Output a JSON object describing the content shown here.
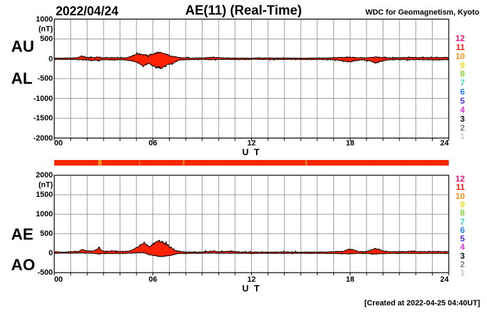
{
  "header": {
    "date": "2022/04/24",
    "title": "AE(11) (Real-Time)",
    "source": "WDC for Geomagnetism, Kyoto"
  },
  "footer": {
    "created": "[Created at 2022-04-25 04:40UT]"
  },
  "axis": {
    "xlabel": "U T",
    "xticks": [
      {
        "label": "00",
        "hour": 0
      },
      {
        "label": "06",
        "hour": 6
      },
      {
        "label": "12",
        "hour": 12
      },
      {
        "label": "18",
        "hour": 18
      },
      {
        "label": "24",
        "hour": 24
      }
    ]
  },
  "panels": {
    "top": {
      "label_upper": "AU",
      "label_lower": "AL",
      "unit": "(nT)",
      "yticks": [
        {
          "label": "1000",
          "value": 1000
        },
        {
          "label": "500",
          "value": 500
        },
        {
          "label": "0",
          "value": 0
        },
        {
          "label": "-500",
          "value": -500
        },
        {
          "label": "-1000",
          "value": -1000
        },
        {
          "label": "-1500",
          "value": -1500
        },
        {
          "label": "-2000",
          "value": -2000
        }
      ]
    },
    "bottom": {
      "label_upper": "AE",
      "label_lower": "AO",
      "unit": "(nT)",
      "yticks": [
        {
          "label": "2000",
          "value": 2000
        },
        {
          "label": "1500",
          "value": 1500
        },
        {
          "label": "1000",
          "value": 1000
        },
        {
          "label": "500",
          "value": 500
        },
        {
          "label": "0",
          "value": 0
        },
        {
          "label": "-500",
          "value": -500
        }
      ]
    }
  },
  "legend": {
    "stations": [
      {
        "id": "12",
        "color": "#f01078"
      },
      {
        "id": "11",
        "color": "#ff2010"
      },
      {
        "id": "10",
        "color": "#ff9010"
      },
      {
        "id": "9",
        "color": "#f0e020"
      },
      {
        "id": "8",
        "color": "#80d830"
      },
      {
        "id": "7",
        "color": "#30d8c0"
      },
      {
        "id": "6",
        "color": "#2080f0"
      },
      {
        "id": "5",
        "color": "#5030d8"
      },
      {
        "id": "4",
        "color": "#e830e8"
      },
      {
        "id": "3",
        "color": "#101010"
      },
      {
        "id": "2",
        "color": "#808080"
      },
      {
        "id": "1",
        "color": "#c8c8c8"
      }
    ]
  },
  "station_bar": {
    "base_color": "#ff2200",
    "texture_color": "#ef3000",
    "gap_color": "#ff9010",
    "gaps": [
      {
        "hour": 2.68,
        "width_hours": 0.18
      },
      {
        "hour": 5.15,
        "width_hours": 0.07
      },
      {
        "hour": 7.83,
        "width_hours": 0.07
      },
      {
        "hour": 15.3,
        "width_hours": 0.05
      }
    ]
  },
  "chart_data": [
    {
      "type": "area",
      "title": "AU (upper envelope) and AL (lower envelope), 1-min values",
      "xlim": [
        0,
        24
      ],
      "ylim": [
        -2000,
        1000
      ],
      "ygrid_step": 500,
      "xgrid_step_hours": 1,
      "ylabel": "nT",
      "xlabel": "U T",
      "fill_color": "#ff2200",
      "outline_color": "#000000",
      "series": [
        {
          "name": "AU",
          "points": [
            [
              0,
              18
            ],
            [
              0.4,
              14
            ],
            [
              0.8,
              18
            ],
            [
              1.2,
              22
            ],
            [
              1.45,
              30
            ],
            [
              1.66,
              68
            ],
            [
              1.85,
              40
            ],
            [
              2.1,
              28
            ],
            [
              2.4,
              32
            ],
            [
              2.68,
              45
            ],
            [
              2.9,
              28
            ],
            [
              3.2,
              24
            ],
            [
              3.5,
              30
            ],
            [
              3.8,
              22
            ],
            [
              4.1,
              20
            ],
            [
              4.4,
              28
            ],
            [
              4.7,
              70
            ],
            [
              4.95,
              110
            ],
            [
              5.2,
              125
            ],
            [
              5.45,
              100
            ],
            [
              5.7,
              85
            ],
            [
              5.95,
              115
            ],
            [
              6.2,
              145
            ],
            [
              6.45,
              150
            ],
            [
              6.7,
              125
            ],
            [
              6.95,
              95
            ],
            [
              7.2,
              60
            ],
            [
              7.5,
              35
            ],
            [
              7.8,
              25
            ],
            [
              8.5,
              20
            ],
            [
              9.3,
              28
            ],
            [
              9.7,
              40
            ],
            [
              10.2,
              22
            ],
            [
              11,
              16
            ],
            [
              12,
              16
            ],
            [
              13,
              20
            ],
            [
              14,
              15
            ],
            [
              15,
              16
            ],
            [
              16,
              20
            ],
            [
              17,
              24
            ],
            [
              17.7,
              38
            ],
            [
              18,
              42
            ],
            [
              18.4,
              28
            ],
            [
              19,
              22
            ],
            [
              19.35,
              35
            ],
            [
              19.65,
              45
            ],
            [
              19.95,
              30
            ],
            [
              20.5,
              24
            ],
            [
              21,
              28
            ],
            [
              21.6,
              34
            ],
            [
              22.2,
              28
            ],
            [
              23,
              32
            ],
            [
              23.6,
              28
            ],
            [
              24,
              32
            ]
          ]
        },
        {
          "name": "AL",
          "points": [
            [
              0,
              -14
            ],
            [
              0.5,
              -18
            ],
            [
              1,
              -15
            ],
            [
              1.4,
              -20
            ],
            [
              1.7,
              -28
            ],
            [
              2,
              -25
            ],
            [
              2.3,
              -52
            ],
            [
              2.55,
              -30
            ],
            [
              2.68,
              -55
            ],
            [
              2.85,
              -30
            ],
            [
              3.2,
              -22
            ],
            [
              3.5,
              -35
            ],
            [
              3.8,
              -24
            ],
            [
              4.1,
              -22
            ],
            [
              4.45,
              -35
            ],
            [
              4.75,
              -55
            ],
            [
              5,
              -85
            ],
            [
              5.2,
              -130
            ],
            [
              5.4,
              -195
            ],
            [
              5.55,
              -150
            ],
            [
              5.75,
              -115
            ],
            [
              5.95,
              -170
            ],
            [
              6.15,
              -225
            ],
            [
              6.35,
              -205
            ],
            [
              6.55,
              -245
            ],
            [
              6.75,
              -185
            ],
            [
              6.95,
              -130
            ],
            [
              7.15,
              -140
            ],
            [
              7.35,
              -80
            ],
            [
              7.6,
              -40
            ],
            [
              7.9,
              -25
            ],
            [
              8.5,
              -18
            ],
            [
              9.5,
              -22
            ],
            [
              10.5,
              -16
            ],
            [
              11.5,
              -18
            ],
            [
              12.5,
              -15
            ],
            [
              13.5,
              -18
            ],
            [
              14.5,
              -15
            ],
            [
              15.5,
              -18
            ],
            [
              16.5,
              -20
            ],
            [
              17.2,
              -28
            ],
            [
              17.75,
              -65
            ],
            [
              18.05,
              -78
            ],
            [
              18.35,
              -45
            ],
            [
              18.8,
              -25
            ],
            [
              19.25,
              -55
            ],
            [
              19.55,
              -115
            ],
            [
              19.85,
              -70
            ],
            [
              20.2,
              -32
            ],
            [
              20.8,
              -22
            ],
            [
              21.5,
              -26
            ],
            [
              22.3,
              -22
            ],
            [
              23.2,
              -26
            ],
            [
              24,
              -24
            ]
          ]
        }
      ]
    },
    {
      "type": "area",
      "title": "AE (upper envelope) and AO (lower envelope), 1-min values",
      "xlim": [
        0,
        24
      ],
      "ylim": [
        -500,
        2000
      ],
      "ygrid_step": 500,
      "xgrid_step_hours": 1,
      "ylabel": "nT",
      "xlabel": "U T",
      "fill_color": "#ff2200",
      "outline_color": "#000000",
      "series": [
        {
          "name": "AE",
          "points": [
            [
              0,
              36
            ],
            [
              0.4,
              30
            ],
            [
              0.8,
              34
            ],
            [
              1.2,
              40
            ],
            [
              1.5,
              55
            ],
            [
              1.7,
              95
            ],
            [
              1.9,
              62
            ],
            [
              2.15,
              50
            ],
            [
              2.4,
              58
            ],
            [
              2.6,
              95
            ],
            [
              2.72,
              165
            ],
            [
              2.85,
              70
            ],
            [
              3.1,
              45
            ],
            [
              3.4,
              55
            ],
            [
              3.7,
              60
            ],
            [
              4,
              42
            ],
            [
              4.3,
              40
            ],
            [
              4.6,
              55
            ],
            [
              4.85,
              95
            ],
            [
              5.05,
              150
            ],
            [
              5.25,
              210
            ],
            [
              5.45,
              265
            ],
            [
              5.6,
              225
            ],
            [
              5.8,
              160
            ],
            [
              6,
              235
            ],
            [
              6.2,
              290
            ],
            [
              6.35,
              305
            ],
            [
              6.55,
              295
            ],
            [
              6.75,
              245
            ],
            [
              6.95,
              195
            ],
            [
              7.1,
              155
            ],
            [
              7.25,
              100
            ],
            [
              7.4,
              65
            ],
            [
              7.6,
              40
            ],
            [
              8,
              32
            ],
            [
              8.7,
              28
            ],
            [
              9.4,
              45
            ],
            [
              9.7,
              58
            ],
            [
              10,
              35
            ],
            [
              10.9,
              48
            ],
            [
              11.3,
              28
            ],
            [
              12,
              30
            ],
            [
              13,
              26
            ],
            [
              14,
              30
            ],
            [
              15,
              26
            ],
            [
              16,
              30
            ],
            [
              17,
              36
            ],
            [
              17.6,
              50
            ],
            [
              17.9,
              100
            ],
            [
              18.15,
              90
            ],
            [
              18.45,
              50
            ],
            [
              18.9,
              38
            ],
            [
              19.25,
              75
            ],
            [
              19.5,
              118
            ],
            [
              19.75,
              105
            ],
            [
              20,
              55
            ],
            [
              20.4,
              40
            ],
            [
              21,
              38
            ],
            [
              21.6,
              48
            ],
            [
              22.2,
              40
            ],
            [
              23,
              46
            ],
            [
              23.6,
              40
            ],
            [
              24,
              44
            ]
          ]
        },
        {
          "name": "AO",
          "points": [
            [
              0,
              -4
            ],
            [
              0.5,
              2
            ],
            [
              1,
              -2
            ],
            [
              1.5,
              6
            ],
            [
              1.7,
              12
            ],
            [
              2,
              2
            ],
            [
              2.4,
              -4
            ],
            [
              2.7,
              -18
            ],
            [
              3,
              -6
            ],
            [
              3.5,
              -8
            ],
            [
              4,
              -6
            ],
            [
              4.5,
              -2
            ],
            [
              4.85,
              8
            ],
            [
              5.1,
              16
            ],
            [
              5.3,
              22
            ],
            [
              5.5,
              8
            ],
            [
              5.65,
              -18
            ],
            [
              5.85,
              -45
            ],
            [
              6.05,
              -60
            ],
            [
              6.3,
              -78
            ],
            [
              6.55,
              -92
            ],
            [
              6.8,
              -72
            ],
            [
              7,
              -62
            ],
            [
              7.2,
              -45
            ],
            [
              7.4,
              -22
            ],
            [
              7.6,
              -10
            ],
            [
              8,
              -6
            ],
            [
              9,
              -2
            ],
            [
              9.6,
              4
            ],
            [
              10,
              -4
            ],
            [
              11,
              -2
            ],
            [
              12,
              -6
            ],
            [
              13,
              -3
            ],
            [
              14,
              -6
            ],
            [
              15,
              -3
            ],
            [
              16,
              -5
            ],
            [
              17,
              -6
            ],
            [
              17.9,
              -18
            ],
            [
              18.3,
              -10
            ],
            [
              19,
              -6
            ],
            [
              19.5,
              -22
            ],
            [
              19.9,
              -14
            ],
            [
              20.5,
              -6
            ],
            [
              21.5,
              -5
            ],
            [
              22.5,
              -6
            ],
            [
              23.5,
              -4
            ],
            [
              24,
              -6
            ]
          ]
        }
      ]
    }
  ]
}
